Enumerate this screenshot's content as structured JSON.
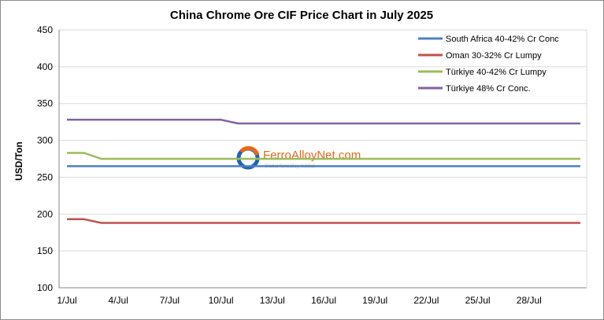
{
  "chart_data": {
    "type": "line",
    "title": "China Chrome Ore CIF Price Chart in July 2025",
    "ylabel": "USD/Ton",
    "xlabel": "",
    "ylim": [
      100,
      450
    ],
    "yticks": [
      100,
      150,
      200,
      250,
      300,
      350,
      400,
      450
    ],
    "x": [
      "1/Jul",
      "2/Jul",
      "3/Jul",
      "4/Jul",
      "5/Jul",
      "6/Jul",
      "7/Jul",
      "8/Jul",
      "9/Jul",
      "10/Jul",
      "11/Jul",
      "12/Jul",
      "13/Jul",
      "14/Jul",
      "15/Jul",
      "16/Jul",
      "17/Jul",
      "18/Jul",
      "19/Jul",
      "20/Jul",
      "21/Jul",
      "22/Jul",
      "23/Jul",
      "24/Jul",
      "25/Jul",
      "26/Jul",
      "27/Jul",
      "28/Jul",
      "29/Jul",
      "30/Jul",
      "31/Jul"
    ],
    "xtick_labels": [
      "1/Jul",
      "4/Jul",
      "7/Jul",
      "10/Jul",
      "13/Jul",
      "16/Jul",
      "19/Jul",
      "22/Jul",
      "25/Jul",
      "28/Jul"
    ],
    "grid": "horizontal",
    "legend_position": "top-right",
    "series": [
      {
        "name": "South Africa 40-42% Cr Conc",
        "color": "#4f81bd",
        "values": [
          265,
          265,
          265,
          265,
          265,
          265,
          265,
          265,
          265,
          265,
          265,
          265,
          265,
          265,
          265,
          265,
          265,
          265,
          265,
          265,
          265,
          265,
          265,
          265,
          265,
          265,
          265,
          265,
          265,
          265,
          265
        ]
      },
      {
        "name": "Oman 30-32% Cr Lumpy",
        "color": "#c0504d",
        "values": [
          193,
          193,
          188,
          188,
          188,
          188,
          188,
          188,
          188,
          188,
          188,
          188,
          188,
          188,
          188,
          188,
          188,
          188,
          188,
          188,
          188,
          188,
          188,
          188,
          188,
          188,
          188,
          188,
          188,
          188,
          188
        ]
      },
      {
        "name": "Türkiye 40-42% Cr Lumpy",
        "color": "#9bbb59",
        "values": [
          283,
          283,
          275,
          275,
          275,
          275,
          275,
          275,
          275,
          275,
          275,
          275,
          275,
          275,
          275,
          275,
          275,
          275,
          275,
          275,
          275,
          275,
          275,
          275,
          275,
          275,
          275,
          275,
          275,
          275,
          275
        ]
      },
      {
        "name": "Türkiye 48% Cr Conc.",
        "color": "#8064a2",
        "values": [
          328,
          328,
          328,
          328,
          328,
          328,
          328,
          328,
          328,
          328,
          323,
          323,
          323,
          323,
          323,
          323,
          323,
          323,
          323,
          323,
          323,
          323,
          323,
          323,
          323,
          323,
          323,
          323,
          323,
          323,
          323
        ]
      }
    ]
  },
  "watermark": {
    "text": "FerroAlloyNet.com",
    "subtext": "Global ferroalloy market",
    "logo_icon": "ferroalloynet-logo-icon"
  }
}
